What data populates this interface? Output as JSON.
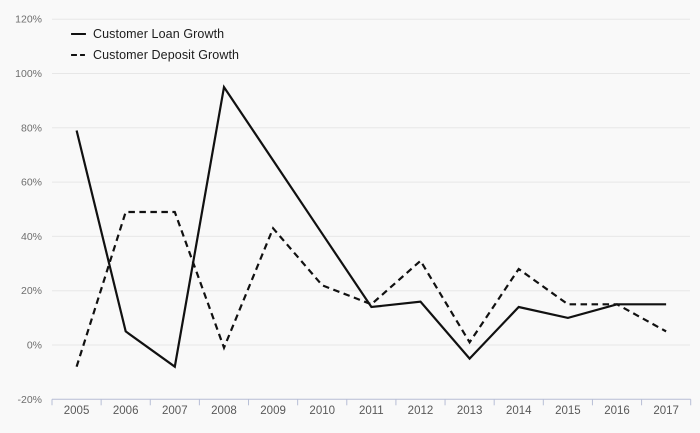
{
  "chart_data": {
    "type": "line",
    "x": [
      2005,
      2006,
      2007,
      2008,
      2009,
      2010,
      2011,
      2012,
      2013,
      2014,
      2015,
      2016,
      2017
    ],
    "series": [
      {
        "name": "Customer Loan Growth",
        "style": "solid",
        "values": [
          79,
          5,
          -8,
          95,
          68,
          41,
          14,
          16,
          -5,
          14,
          10,
          15,
          15
        ]
      },
      {
        "name": "Customer Deposit Growth",
        "style": "dashed",
        "values": [
          -8,
          49,
          49,
          -1,
          43,
          22,
          15,
          31,
          1,
          28,
          15,
          15,
          5
        ]
      }
    ],
    "ylim": [
      -20,
      120
    ],
    "ytick_step": 20,
    "ytick_suffix": "%",
    "y_axis_labels": [
      "120%",
      "100%",
      "80%",
      "60%",
      "40%",
      "20%",
      "0%",
      "-20%"
    ],
    "x_axis_labels": [
      "2005",
      "2006",
      "2007",
      "2008",
      "2009",
      "2010",
      "2011",
      "2012",
      "2013",
      "2014",
      "2015",
      "2016",
      "2017"
    ],
    "grid": "horizontal",
    "legend_position": "top-left",
    "title": "",
    "xlabel": "",
    "ylabel": ""
  },
  "colors": {
    "background": "#f9f9f9",
    "series_line": "#111111",
    "gridline": "#e7e7e7",
    "axis_line": "#b7bed6",
    "y_tick_label": "#6e6e6e",
    "x_tick_label": "#595959",
    "legend_text": "#1c1c1c"
  }
}
